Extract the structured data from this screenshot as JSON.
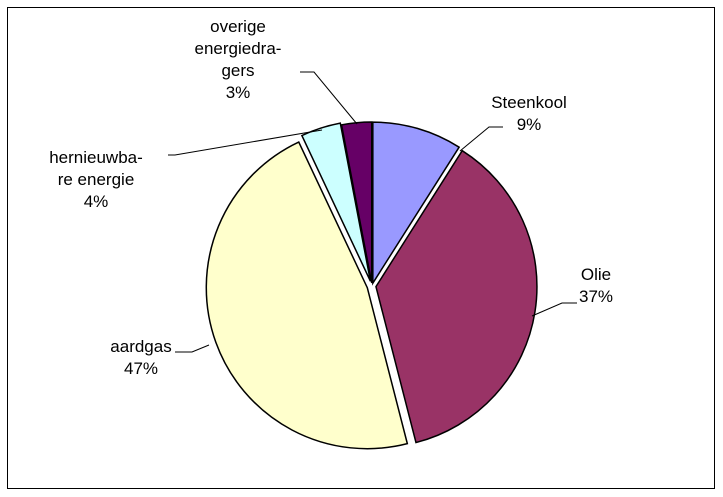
{
  "chart_data": {
    "type": "pie",
    "title": "",
    "legend": "none",
    "slices": [
      {
        "name": "Steenkool",
        "value": 9,
        "label_lines": [
          "Steenkool"
        ],
        "pct_label": "9%",
        "color": "#9999FF"
      },
      {
        "name": "Olie",
        "value": 37,
        "label_lines": [
          "Olie"
        ],
        "pct_label": "37%",
        "color": "#993366"
      },
      {
        "name": "aardgas",
        "value": 47,
        "label_lines": [
          "aardgas"
        ],
        "pct_label": "47%",
        "color": "#FFFFCC"
      },
      {
        "name": "hernieuwbare energie",
        "value": 4,
        "label_lines": [
          "hernieuwba-",
          "re energie"
        ],
        "pct_label": "4%",
        "color": "#CCFFFF"
      },
      {
        "name": "overige energiedragers",
        "value": 3,
        "label_lines": [
          "overige",
          "energiedra-",
          "gers"
        ],
        "pct_label": "3%",
        "color": "#660066"
      }
    ]
  }
}
